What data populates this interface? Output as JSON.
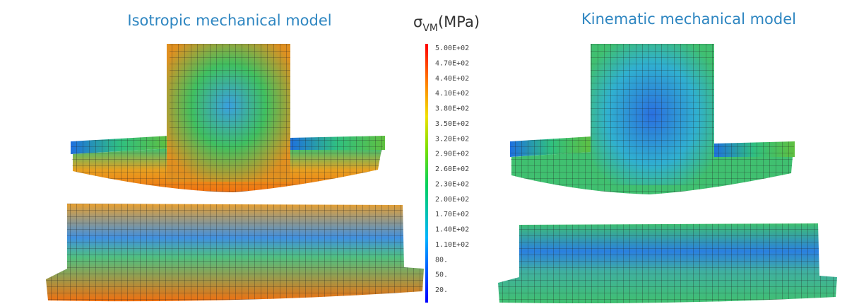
{
  "titles": {
    "isotropic": "Isotropic mechanical model",
    "kinematic": "Kinematic mechanical model"
  },
  "colorbar": {
    "symbol": "σ",
    "subscript": "VM",
    "unit": "(MPa)",
    "labels": [
      "5.00E+02",
      "4.70E+02",
      "4.40E+02",
      "4.10E+02",
      "3.80E+02",
      "3.50E+02",
      "3.20E+02",
      "2.90E+02",
      "2.60E+02",
      "2.30E+02",
      "2.00E+02",
      "1.70E+02",
      "1.40E+02",
      "1.10E+02",
      "80.",
      "50.",
      "20."
    ]
  }
}
